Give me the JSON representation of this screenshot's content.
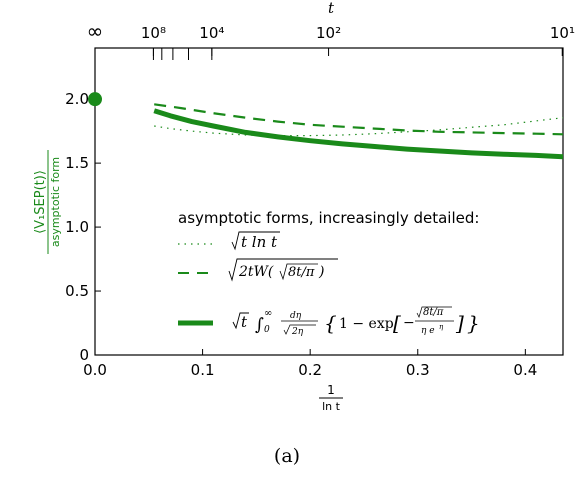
{
  "chart_data": {
    "type": "line",
    "xlabel_num": "1",
    "xlabel_den": "ln  t",
    "top_xlabel": "t",
    "ylabel_num": "⟨V₁SEP(t)⟩",
    "ylabel_den": "asymptotic form",
    "xlim": [
      0,
      0.435
    ],
    "ylim": [
      0,
      2.4
    ],
    "x_ticks": [
      0.0,
      0.1,
      0.2,
      0.3,
      0.4
    ],
    "x_tick_labels": [
      "0.0",
      "0.1",
      "0.2",
      "0.3",
      "0.4"
    ],
    "y_ticks": [
      0,
      0.5,
      1.0,
      1.5,
      2.0
    ],
    "y_tick_labels": [
      "0",
      "0.5",
      "1.0",
      "1.5",
      "2.0"
    ],
    "top_ticks": [
      {
        "t": "∞",
        "x": 0.0
      },
      {
        "t": "10⁸",
        "x": 0.0543
      },
      {
        "t": "10⁴",
        "x": 0.1086
      },
      {
        "t": "10²",
        "x": 0.2171
      },
      {
        "t": "10¹",
        "x": 0.4343
      }
    ],
    "top_minor_ticks_x": [
      0.0543,
      0.0621,
      0.0724,
      0.0869,
      0.1086
    ],
    "point": {
      "x": 0.0,
      "y": 2.0
    },
    "series": [
      {
        "style": "dotted",
        "x": [
          0.055,
          0.07,
          0.09,
          0.11,
          0.14,
          0.17,
          0.2,
          0.23,
          0.26,
          0.29,
          0.32,
          0.35,
          0.38,
          0.41,
          0.435
        ],
        "y": [
          1.79,
          1.77,
          1.75,
          1.735,
          1.72,
          1.715,
          1.715,
          1.72,
          1.73,
          1.745,
          1.76,
          1.78,
          1.8,
          1.83,
          1.855
        ]
      },
      {
        "style": "dashed",
        "x": [
          0.055,
          0.08,
          0.11,
          0.14,
          0.17,
          0.2,
          0.23,
          0.26,
          0.29,
          0.32,
          0.35,
          0.38,
          0.41,
          0.435
        ],
        "y": [
          1.96,
          1.93,
          1.89,
          1.855,
          1.825,
          1.8,
          1.785,
          1.77,
          1.755,
          1.745,
          1.74,
          1.735,
          1.73,
          1.725
        ]
      },
      {
        "style": "solid",
        "x": [
          0.055,
          0.07,
          0.09,
          0.11,
          0.14,
          0.17,
          0.2,
          0.23,
          0.26,
          0.29,
          0.32,
          0.35,
          0.38,
          0.41,
          0.435
        ],
        "y": [
          1.91,
          1.87,
          1.825,
          1.79,
          1.74,
          1.705,
          1.675,
          1.65,
          1.63,
          1.61,
          1.595,
          1.58,
          1.57,
          1.56,
          1.55
        ]
      }
    ],
    "legend": {
      "title": "asymptotic forms, increasingly detailed:",
      "placement": "lower-right"
    },
    "colors": {
      "series": "#1a8a1a",
      "axis": "#000000"
    }
  },
  "caption": "(a)"
}
